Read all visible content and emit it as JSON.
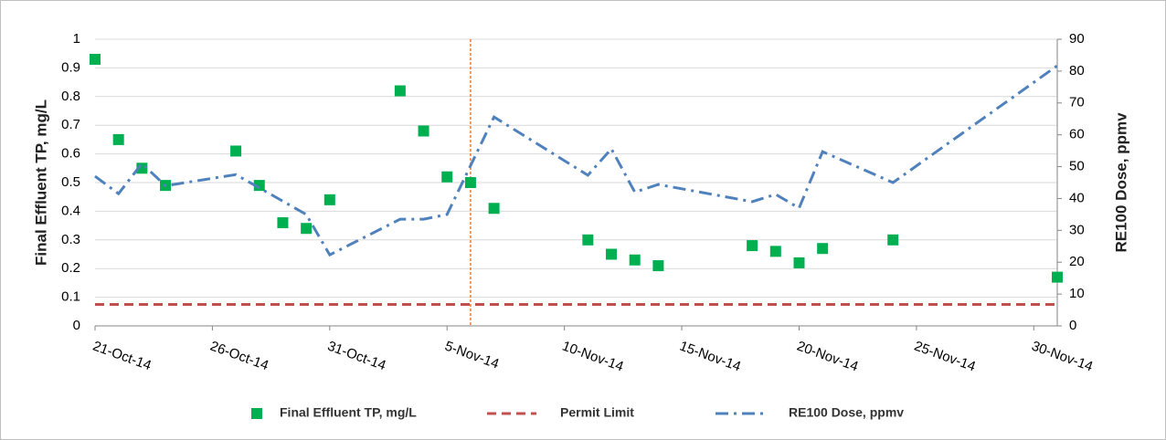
{
  "chart_data": {
    "type": "combo",
    "y_label": "Final Effluent TP, mg/L",
    "y2_label": "RE100 Dose, ppmv",
    "xlim": [
      "21-Oct-14",
      "1-Dec-14"
    ],
    "xticks": [
      "21-Oct-14",
      "26-Oct-14",
      "31-Oct-14",
      "5-Nov-14",
      "10-Nov-14",
      "15-Nov-14",
      "20-Nov-14",
      "25-Nov-14",
      "30-Nov-14"
    ],
    "ylim": [
      0,
      1
    ],
    "yticks": [
      0,
      0.1,
      0.2,
      0.3,
      0.4,
      0.5,
      0.6,
      0.7,
      0.8,
      0.9,
      1
    ],
    "y2lim": [
      0,
      90
    ],
    "y2ticks": [
      0,
      10,
      20,
      30,
      40,
      50,
      60,
      70,
      80,
      90
    ],
    "grid": true,
    "vline": {
      "x": "6-Nov-14",
      "color": "#ed7d31"
    },
    "series": [
      {
        "name": "Final Effluent TP, mg/L",
        "kind": "scatter",
        "color": "#00b050",
        "x": [
          "21-Oct-14",
          "22-Oct-14",
          "23-Oct-14",
          "24-Oct-14",
          "27-Oct-14",
          "28-Oct-14",
          "29-Oct-14",
          "30-Oct-14",
          "31-Oct-14",
          "3-Nov-14",
          "4-Nov-14",
          "5-Nov-14",
          "6-Nov-14",
          "7-Nov-14",
          "11-Nov-14",
          "12-Nov-14",
          "13-Nov-14",
          "14-Nov-14",
          "18-Nov-14",
          "19-Nov-14",
          "20-Nov-14",
          "21-Nov-14",
          "24-Nov-14",
          "1-Dec-14"
        ],
        "values": [
          0.93,
          0.65,
          0.55,
          0.49,
          0.61,
          0.49,
          0.36,
          0.34,
          0.44,
          0.82,
          0.68,
          0.52,
          0.5,
          0.41,
          0.3,
          0.25,
          0.23,
          0.21,
          0.28,
          0.26,
          0.22,
          0.27,
          0.3,
          0.17
        ]
      },
      {
        "name": "Permit Limit",
        "kind": "dashed",
        "color": "#c0504d",
        "x": [
          "21-Oct-14",
          "1-Dec-14"
        ],
        "values": [
          0.075,
          0.075
        ]
      },
      {
        "name": "RE100 Dose, ppmv",
        "kind": "dashdot",
        "color": "#4f81bd",
        "axis": "y2",
        "x": [
          "21-Oct-14",
          "22-Oct-14",
          "23-Oct-14",
          "24-Oct-14",
          "27-Oct-14",
          "30-Oct-14",
          "31-Oct-14",
          "3-Nov-14",
          "4-Nov-14",
          "5-Nov-14",
          "7-Nov-14",
          "11-Nov-14",
          "12-Nov-14",
          "13-Nov-14",
          "14-Nov-14",
          "18-Nov-14",
          "19-Nov-14",
          "20-Nov-14",
          "21-Nov-14",
          "24-Nov-14",
          "1-Dec-14"
        ],
        "values": [
          47,
          41.5,
          51,
          44,
          47.5,
          35,
          22.3,
          33.5,
          33.5,
          35,
          65.6,
          47.3,
          55.6,
          42,
          44.4,
          39,
          41.3,
          37,
          54.7,
          45,
          81.7
        ]
      }
    ]
  }
}
